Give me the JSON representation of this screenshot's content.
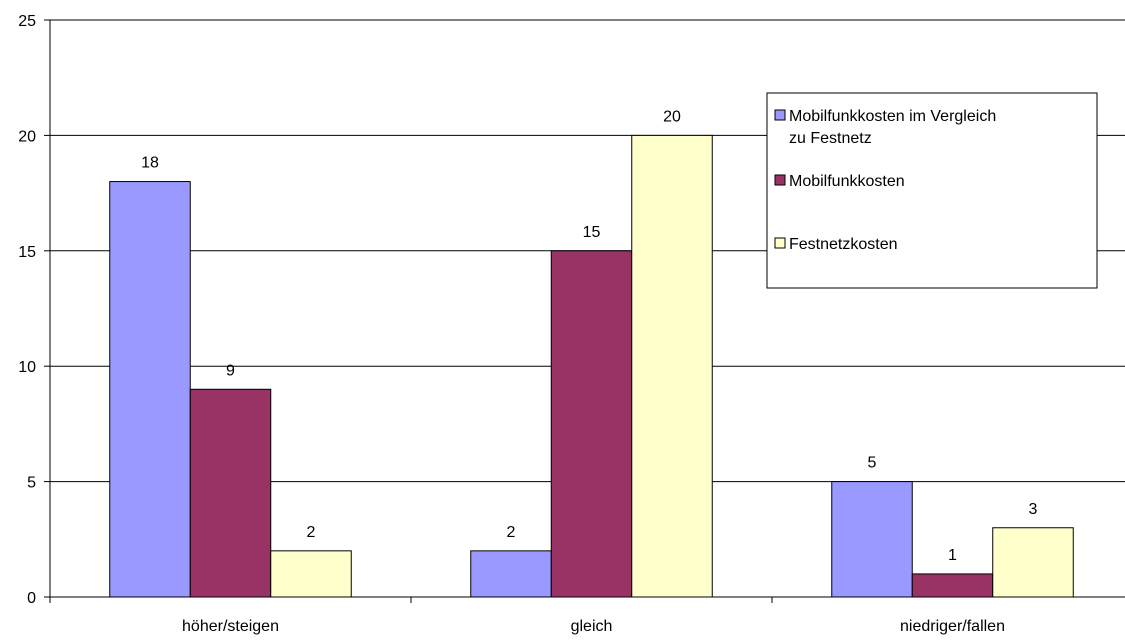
{
  "chart_data": {
    "type": "bar",
    "categories": [
      "höher/steigen",
      "gleich",
      "niedriger/fallen"
    ],
    "series": [
      {
        "name": "Mobilfunkkosten im Vergleich zu Festnetz",
        "legend_lines": [
          "Mobilfunkkosten im Vergleich",
          "zu Festnetz"
        ],
        "values": [
          18,
          2,
          5
        ],
        "color": "#9999ff"
      },
      {
        "name": "Mobilfunkkosten",
        "legend_lines": [
          "Mobilfunkkosten"
        ],
        "values": [
          9,
          15,
          1
        ],
        "color": "#993366"
      },
      {
        "name": "Festnetzkosten",
        "legend_lines": [
          "Festnetzkosten"
        ],
        "values": [
          2,
          20,
          3
        ],
        "color": "#ffffcc"
      }
    ],
    "ylim": [
      0,
      25
    ],
    "yticks": [
      "0",
      "5",
      "10",
      "15",
      "20",
      "25"
    ],
    "grid": true,
    "legend_position": "right",
    "data_labels": true
  }
}
